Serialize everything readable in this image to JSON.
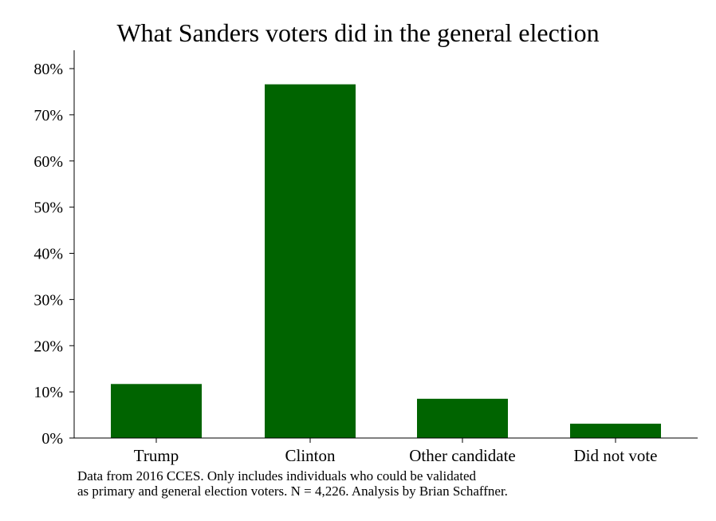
{
  "chart_data": {
    "type": "bar",
    "title": "What Sanders voters did in the general election",
    "categories": [
      "Trump",
      "Clinton",
      "Other candidate",
      "Did not vote"
    ],
    "values": [
      11.7,
      76.6,
      8.5,
      3.1
    ],
    "ylim": [
      0,
      84
    ],
    "yticks": [
      0,
      10,
      20,
      30,
      40,
      50,
      60,
      70,
      80
    ],
    "ytick_labels": [
      "0%",
      "10%",
      "20%",
      "30%",
      "40%",
      "50%",
      "60%",
      "70%",
      "80%"
    ],
    "xlabel": "",
    "ylabel": "",
    "grid": false,
    "legend": "none",
    "bar_color": "#006400",
    "note": [
      "Data from 2016 CCES. Only includes individuals who could be validated",
      "as primary and general election voters. N = 4,226. Analysis by Brian Schaffner."
    ]
  }
}
